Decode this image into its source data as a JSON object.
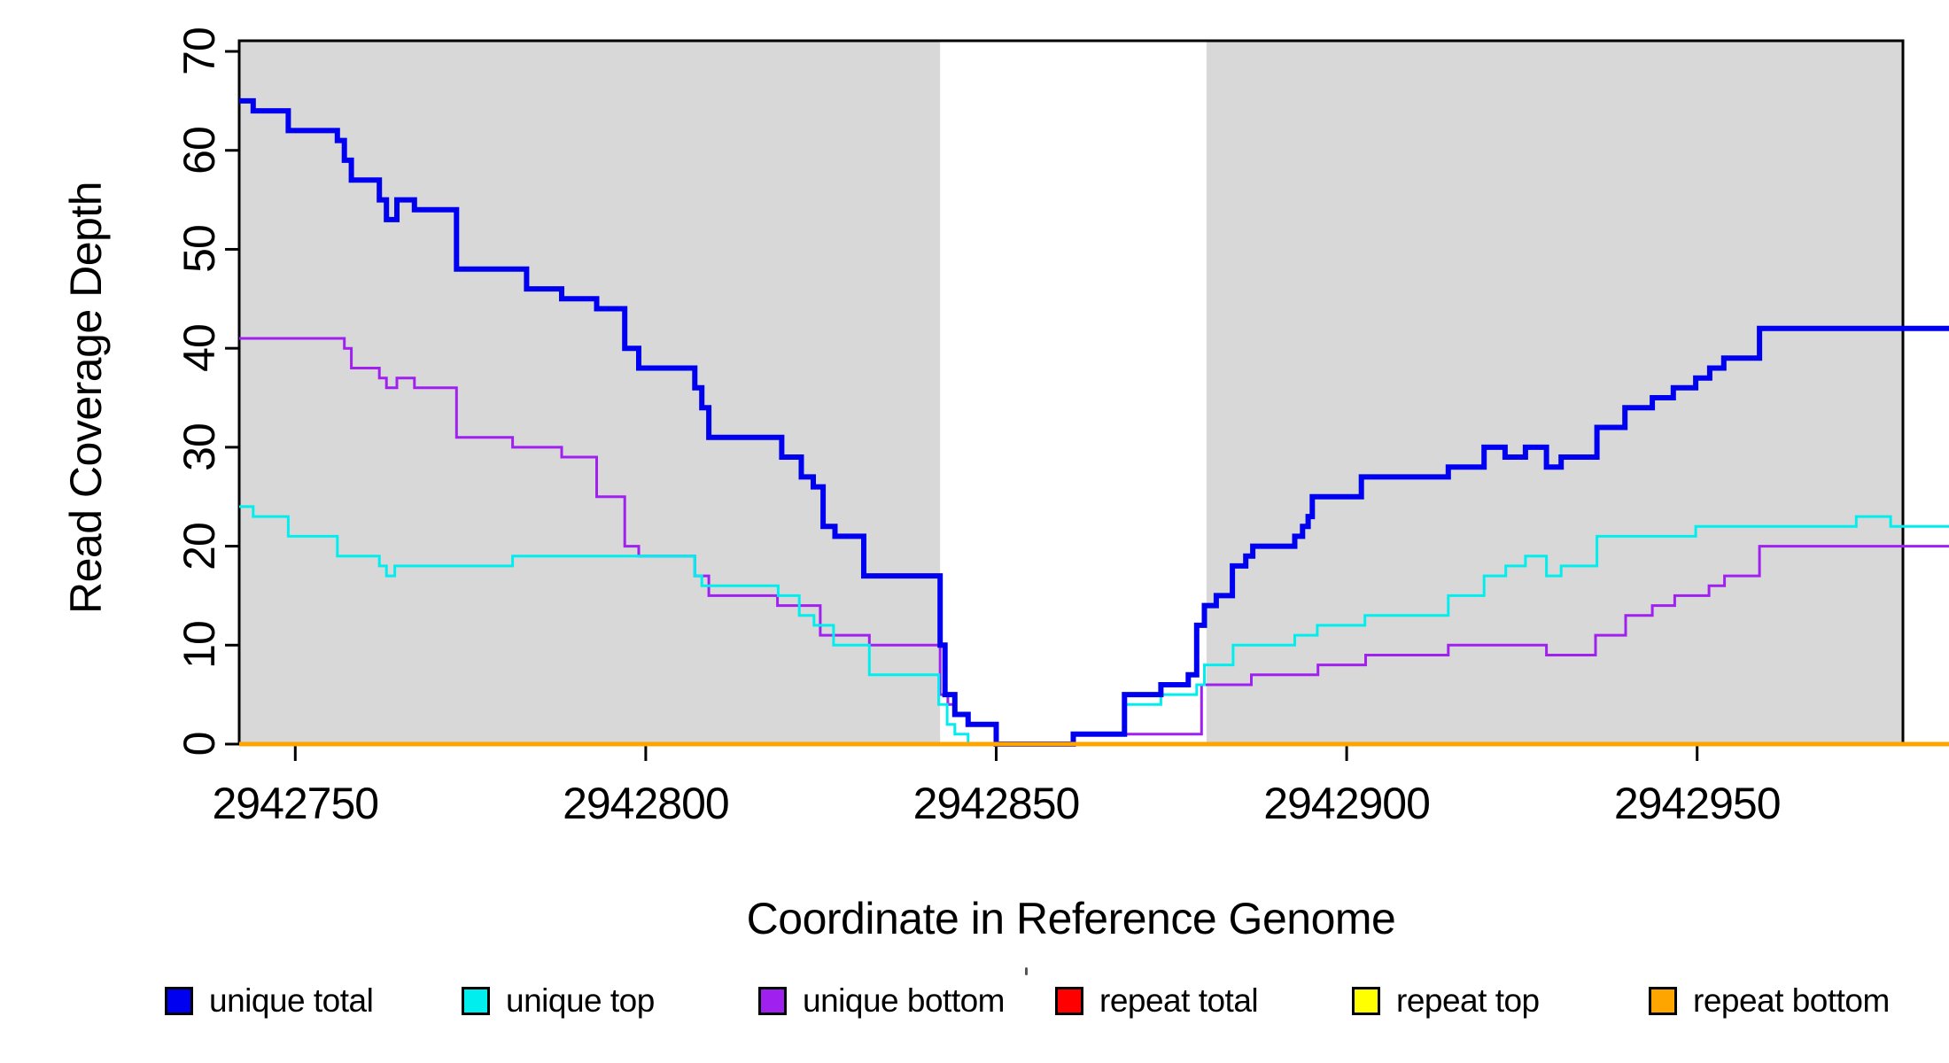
{
  "chart_data": {
    "type": "line",
    "subtype": "step",
    "title": "",
    "xlabel": "Coordinate in Reference Genome",
    "ylabel": "Read Coverage Depth",
    "xlim": [
      2942742,
      2942986
    ],
    "ylim": [
      0,
      70
    ],
    "x_ticks": [
      2942750,
      2942800,
      2942850,
      2942900,
      2942950
    ],
    "y_ticks": [
      0,
      10,
      20,
      30,
      40,
      50,
      60,
      70
    ],
    "grid": false,
    "legend_position": "bottom",
    "plot_background": "#ffffff",
    "shade_color": "#d8d8d8",
    "shaded_regions": [
      {
        "x0": 2942742,
        "x1": 2942842
      },
      {
        "x0": 2942880,
        "x1": 2942979.3
      }
    ],
    "series": [
      {
        "name": "repeat total",
        "color": "#ff0000",
        "width": 3,
        "steps": [
          [
            2942742,
            0
          ],
          [
            2942986,
            0
          ]
        ]
      },
      {
        "name": "repeat top",
        "color": "#ffff00",
        "width": 3,
        "steps": [
          [
            2942742,
            0
          ],
          [
            2942986,
            0
          ]
        ]
      },
      {
        "name": "unique bottom",
        "color": "#a020f0",
        "width": 3,
        "steps": [
          [
            2942742,
            41
          ],
          [
            2942757,
            40
          ],
          [
            2942758,
            38
          ],
          [
            2942762,
            37
          ],
          [
            2942763,
            36
          ],
          [
            2942764.5,
            37
          ],
          [
            2942767,
            36
          ],
          [
            2942773,
            31
          ],
          [
            2942781,
            30
          ],
          [
            2942788,
            29
          ],
          [
            2942793,
            25
          ],
          [
            2942797,
            20
          ],
          [
            2942799,
            19
          ],
          [
            2942807,
            17
          ],
          [
            2942809,
            15
          ],
          [
            2942818.8,
            14
          ],
          [
            2942824.9,
            11
          ],
          [
            2942831.9,
            10
          ],
          [
            2942842,
            5
          ],
          [
            2942843.1,
            4
          ],
          [
            2942844.1,
            3
          ],
          [
            2942846,
            2
          ],
          [
            2942850,
            0
          ],
          [
            2942861,
            1
          ],
          [
            2942879.3,
            6
          ],
          [
            2942886.4,
            7
          ],
          [
            2942895.9,
            8
          ],
          [
            2942902.7,
            9
          ],
          [
            2942914.5,
            10
          ],
          [
            2942928.5,
            9
          ],
          [
            2942935.5,
            11
          ],
          [
            2942939.8,
            13
          ],
          [
            2942943.6,
            14
          ],
          [
            2942946.8,
            15
          ],
          [
            2942951.7,
            16
          ],
          [
            2942953.9,
            17
          ],
          [
            2942958.9,
            20
          ],
          [
            2942986,
            20
          ]
        ]
      },
      {
        "name": "unique top",
        "color": "#00eeee",
        "width": 3,
        "steps": [
          [
            2942742,
            24
          ],
          [
            2942744,
            23
          ],
          [
            2942749,
            21
          ],
          [
            2942756,
            19
          ],
          [
            2942762,
            18
          ],
          [
            2942763,
            17
          ],
          [
            2942764.2,
            18
          ],
          [
            2942781,
            19
          ],
          [
            2942807,
            17
          ],
          [
            2942808,
            16
          ],
          [
            2942818.9,
            15
          ],
          [
            2942821.9,
            13
          ],
          [
            2942824,
            12
          ],
          [
            2942826.8,
            10
          ],
          [
            2942831.9,
            7
          ],
          [
            2942841.8,
            4
          ],
          [
            2942843,
            2
          ],
          [
            2942844.1,
            1
          ],
          [
            2942846,
            0
          ],
          [
            2942861,
            1
          ],
          [
            2942868.3,
            4
          ],
          [
            2942873.5,
            5
          ],
          [
            2942878.6,
            6
          ],
          [
            2942879.7,
            8
          ],
          [
            2942883.8,
            10
          ],
          [
            2942892.6,
            11
          ],
          [
            2942895.8,
            12
          ],
          [
            2942902.6,
            13
          ],
          [
            2942914.5,
            15
          ],
          [
            2942919.6,
            17
          ],
          [
            2942922.7,
            18
          ],
          [
            2942925.5,
            19
          ],
          [
            2942928.5,
            17
          ],
          [
            2942930.6,
            18
          ],
          [
            2942935.7,
            21
          ],
          [
            2942949.8,
            22
          ],
          [
            2942972.7,
            23
          ],
          [
            2942977.6,
            22
          ],
          [
            2942986,
            22
          ]
        ]
      },
      {
        "name": "unique total",
        "color": "#0000f0",
        "width": 6,
        "steps": [
          [
            2942742,
            65
          ],
          [
            2942744,
            64
          ],
          [
            2942749,
            62
          ],
          [
            2942756,
            61
          ],
          [
            2942757,
            59
          ],
          [
            2942758,
            57
          ],
          [
            2942762,
            55
          ],
          [
            2942763,
            53
          ],
          [
            2942764.5,
            55
          ],
          [
            2942767,
            54
          ],
          [
            2942773,
            48
          ],
          [
            2942783,
            46
          ],
          [
            2942788,
            45
          ],
          [
            2942793,
            44
          ],
          [
            2942797,
            40
          ],
          [
            2942799,
            38
          ],
          [
            2942807,
            36
          ],
          [
            2942808,
            34
          ],
          [
            2942809,
            31
          ],
          [
            2942819.4,
            29
          ],
          [
            2942822.2,
            27
          ],
          [
            2942823.9,
            26
          ],
          [
            2942825.3,
            22
          ],
          [
            2942827,
            21
          ],
          [
            2942831.1,
            17
          ],
          [
            2942842,
            10
          ],
          [
            2942842.7,
            5
          ],
          [
            2942844.1,
            3
          ],
          [
            2942846,
            2
          ],
          [
            2942850,
            0
          ],
          [
            2942861,
            1
          ],
          [
            2942868.3,
            5
          ],
          [
            2942873.5,
            6
          ],
          [
            2942877.4,
            7
          ],
          [
            2942878.6,
            12
          ],
          [
            2942879.7,
            14
          ],
          [
            2942881.4,
            15
          ],
          [
            2942883.7,
            18
          ],
          [
            2942885.6,
            19
          ],
          [
            2942886.6,
            20
          ],
          [
            2942892.6,
            21
          ],
          [
            2942893.7,
            22
          ],
          [
            2942894.5,
            23
          ],
          [
            2942895.1,
            25
          ],
          [
            2942902.1,
            27
          ],
          [
            2942914.5,
            28
          ],
          [
            2942919.6,
            30
          ],
          [
            2942922.6,
            29
          ],
          [
            2942925.5,
            30
          ],
          [
            2942928.5,
            28
          ],
          [
            2942930.6,
            29
          ],
          [
            2942935.7,
            32
          ],
          [
            2942939.7,
            34
          ],
          [
            2942943.6,
            35
          ],
          [
            2942946.6,
            36
          ],
          [
            2942949.8,
            37
          ],
          [
            2942951.8,
            38
          ],
          [
            2942953.8,
            39
          ],
          [
            2942958.9,
            42
          ],
          [
            2942986,
            42
          ]
        ]
      },
      {
        "name": "repeat bottom",
        "color": "#ffa500",
        "width": 5,
        "steps": [
          [
            2942742,
            0
          ],
          [
            2942986,
            0
          ]
        ]
      }
    ],
    "legend": [
      {
        "label": "unique total",
        "color": "#0000f0"
      },
      {
        "label": "unique top",
        "color": "#00eeee"
      },
      {
        "label": "unique bottom",
        "color": "#a020f0"
      },
      {
        "label": "repeat total",
        "color": "#ff0000"
      },
      {
        "label": "repeat top",
        "color": "#ffff00"
      },
      {
        "label": "repeat bottom",
        "color": "#ffa500"
      }
    ]
  }
}
